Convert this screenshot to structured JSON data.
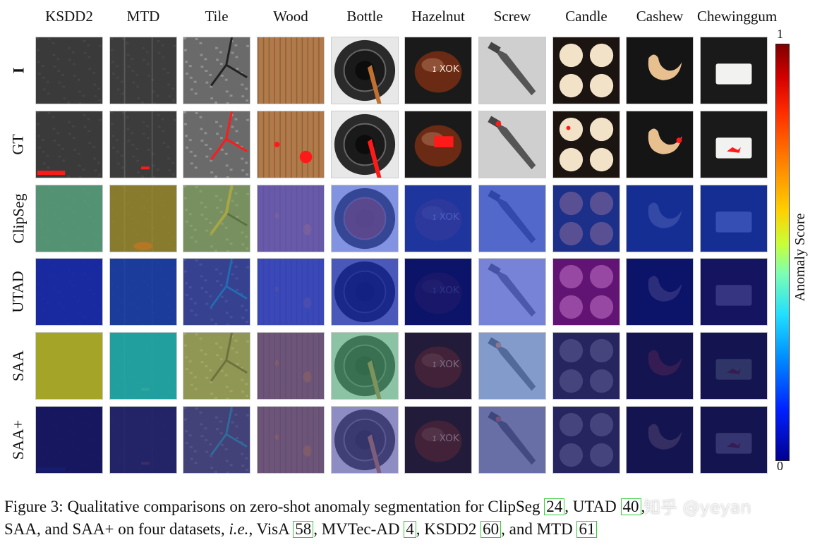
{
  "figure": {
    "columns": [
      "KSDD2",
      "MTD",
      "Tile",
      "Wood",
      "Bottle",
      "Hazelnut",
      "Screw",
      "Candle",
      "Cashew",
      "Chewinggum"
    ],
    "rows": [
      "I",
      "GT",
      "ClipSeg",
      "UTAD",
      "SAA",
      "SAA+"
    ],
    "colorbar": {
      "top_label": "1",
      "bottom_label": "0",
      "title": "Anomaly Score"
    }
  },
  "caption": {
    "prefix": "Figure 3: Qualitative comparisons on zero-shot anomaly segmentation for ClipSeg ",
    "c1": "24",
    "t1": ", UTAD ",
    "c2": "40",
    "t2": ",",
    "line2a": "SAA, and SAA+ on four datasets, ",
    "ie": "i.e.",
    "line2b": ", VisA ",
    "c3": "58",
    "t3": ", MVTec-AD ",
    "c4": "4",
    "t4": ", KSDD2 ",
    "c5": "60",
    "t5": ", and MTD ",
    "c6": "61",
    "t6": ""
  },
  "watermark": "知乎 @yeyan",
  "colors": {
    "overlay_red": "#ff1a1a",
    "cite_border": "#33cc33"
  }
}
